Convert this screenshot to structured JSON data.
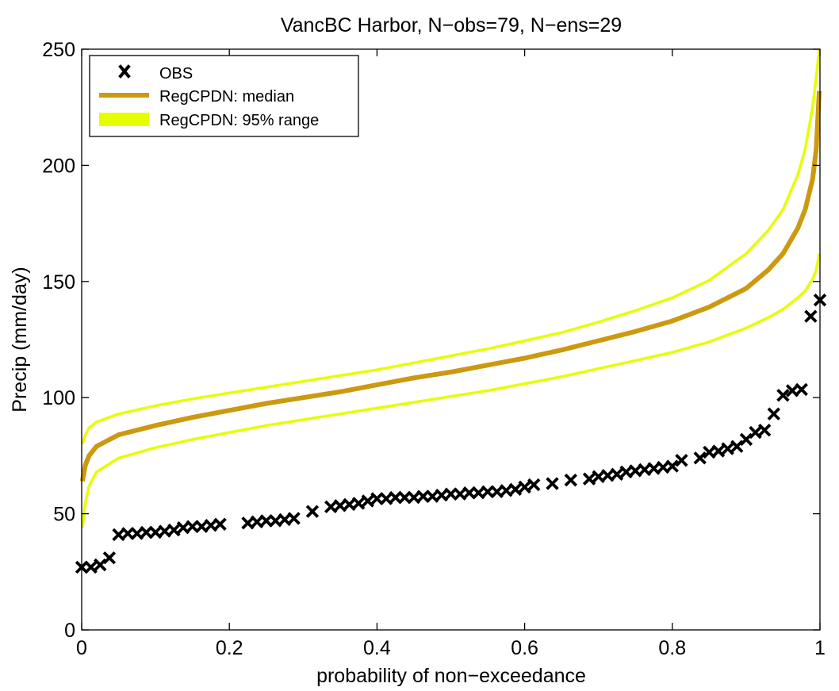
{
  "chart_data": {
    "type": "line",
    "title": "VancBC Harbor, N−obs=79, N−ens=29",
    "xlabel": "probability of non−exceedance",
    "ylabel": "Precip (mm/day)",
    "xlim": [
      0,
      1
    ],
    "ylim": [
      0,
      250
    ],
    "xticks": [
      0,
      0.2,
      0.4,
      0.6,
      0.8,
      1
    ],
    "xtick_labels": [
      "0",
      "0.2",
      "0.4",
      "0.6",
      "0.8",
      "1"
    ],
    "yticks": [
      0,
      50,
      100,
      150,
      200,
      250
    ],
    "ytick_labels": [
      "0",
      "50",
      "100",
      "150",
      "200",
      "250"
    ],
    "grid": false,
    "legend_position": "top-left",
    "legend": [
      {
        "label": "OBS",
        "marker": "x",
        "color": "#000000"
      },
      {
        "label": "RegCPDN: median",
        "marker": "line",
        "color": "#cc9910"
      },
      {
        "label": "RegCPDN: 95% range",
        "marker": "band",
        "color": "#e5ff00"
      }
    ],
    "series": [
      {
        "name": "RegCPDN: median",
        "color": "#cc9910",
        "x": [
          0.001,
          0.005,
          0.01,
          0.02,
          0.05,
          0.1,
          0.15,
          0.2,
          0.25,
          0.3,
          0.35,
          0.4,
          0.45,
          0.5,
          0.55,
          0.6,
          0.65,
          0.7,
          0.75,
          0.8,
          0.85,
          0.9,
          0.93,
          0.95,
          0.97,
          0.98,
          0.99,
          0.995,
          0.999
        ],
        "y": [
          64,
          71,
          75,
          79,
          84,
          88,
          91.5,
          94.5,
          97.5,
          100,
          102.5,
          105.5,
          108.5,
          111,
          114,
          117,
          120.5,
          124.5,
          128.5,
          133,
          139,
          147,
          155,
          162,
          173,
          181,
          194,
          207,
          232
        ]
      },
      {
        "name": "RegCPDN: 95% range (upper)",
        "color": "#e5ff00",
        "x": [
          0.001,
          0.005,
          0.01,
          0.02,
          0.05,
          0.1,
          0.15,
          0.2,
          0.25,
          0.3,
          0.35,
          0.4,
          0.45,
          0.5,
          0.55,
          0.6,
          0.65,
          0.7,
          0.75,
          0.8,
          0.85,
          0.9,
          0.93,
          0.95,
          0.97,
          0.98,
          0.99,
          0.995,
          0.999
        ],
        "y": [
          80,
          84,
          87,
          89.5,
          93,
          96.5,
          99.5,
          102,
          104.5,
          107,
          109.5,
          112,
          115,
          118,
          121,
          124.5,
          128,
          132.5,
          137.5,
          143,
          150.5,
          162,
          172,
          181,
          196,
          207,
          225,
          238,
          250
        ]
      },
      {
        "name": "RegCPDN: 95% range (lower)",
        "color": "#e5ff00",
        "x": [
          0.001,
          0.005,
          0.01,
          0.02,
          0.05,
          0.1,
          0.15,
          0.2,
          0.25,
          0.3,
          0.35,
          0.4,
          0.45,
          0.5,
          0.55,
          0.6,
          0.65,
          0.7,
          0.75,
          0.8,
          0.85,
          0.9,
          0.93,
          0.95,
          0.97,
          0.98,
          0.99,
          0.995,
          0.999
        ],
        "y": [
          44,
          55,
          62,
          68,
          74,
          78.5,
          82,
          85,
          88,
          90.5,
          93,
          95.5,
          98,
          100.5,
          103,
          106,
          109,
          112.5,
          116,
          119.5,
          124,
          130,
          134.5,
          138,
          143,
          146,
          151,
          155,
          162
        ]
      },
      {
        "name": "OBS",
        "marker": "x",
        "color": "#000000",
        "x": [
          0.0,
          0.0125,
          0.025,
          0.0375,
          0.05,
          0.0625,
          0.075,
          0.0875,
          0.1,
          0.1125,
          0.125,
          0.1375,
          0.15,
          0.1625,
          0.175,
          0.1875,
          0.225,
          0.2375,
          0.25,
          0.2625,
          0.275,
          0.2875,
          0.3125,
          0.3375,
          0.35,
          0.3625,
          0.375,
          0.3875,
          0.4,
          0.4125,
          0.425,
          0.4375,
          0.45,
          0.4625,
          0.475,
          0.4875,
          0.5,
          0.5125,
          0.525,
          0.5375,
          0.55,
          0.5625,
          0.575,
          0.5875,
          0.6,
          0.6125,
          0.6375,
          0.6625,
          0.6875,
          0.7,
          0.7125,
          0.725,
          0.7375,
          0.75,
          0.7625,
          0.775,
          0.7875,
          0.8,
          0.8125,
          0.8375,
          0.85,
          0.8625,
          0.875,
          0.8875,
          0.9,
          0.9125,
          0.925,
          0.9375,
          0.95,
          0.9625,
          0.975,
          0.9875,
          1.0
        ],
        "y": [
          27,
          27,
          28,
          31,
          41,
          41.5,
          41.5,
          42,
          42,
          42.5,
          43,
          44,
          44.5,
          44.5,
          45,
          45.5,
          46,
          46.5,
          47,
          47,
          47.5,
          48,
          51,
          53,
          53.5,
          54,
          54.5,
          55.5,
          56.5,
          56.5,
          57,
          57,
          57,
          57.5,
          57.5,
          58,
          58.5,
          58.5,
          59,
          59,
          59.5,
          59.5,
          60,
          60.5,
          61.5,
          62.5,
          63,
          64.5,
          65,
          66,
          66.5,
          67,
          68,
          68.5,
          69,
          69.5,
          70,
          70.5,
          73,
          74,
          76.5,
          77,
          78,
          79,
          82,
          85,
          86,
          93,
          101,
          103,
          103.5,
          135,
          142
        ]
      }
    ]
  }
}
